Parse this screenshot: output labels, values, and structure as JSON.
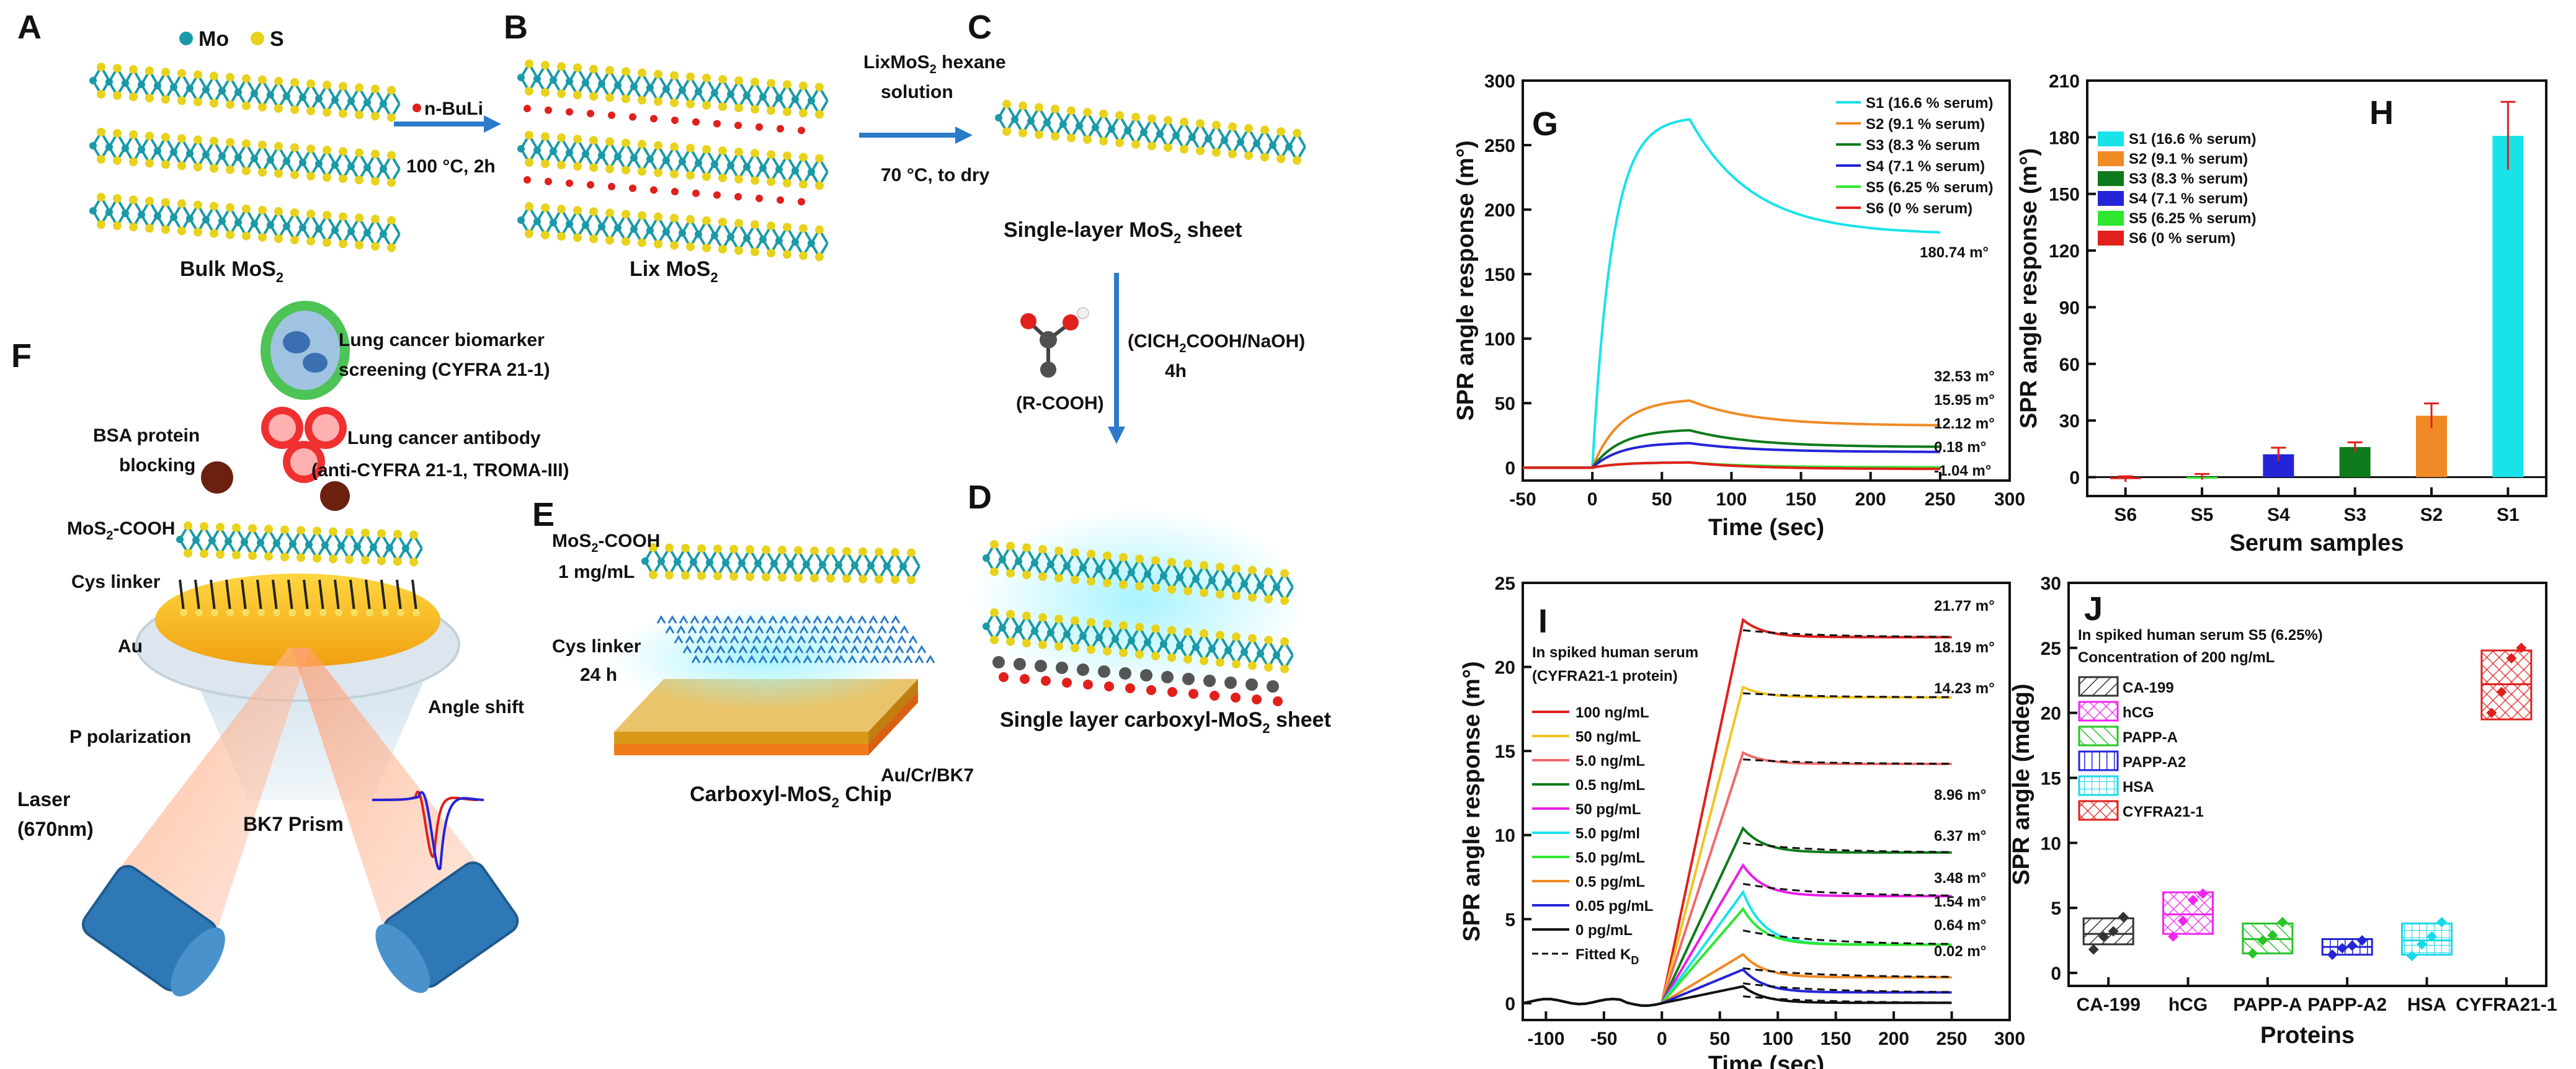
{
  "schematic": {
    "panel_a": "A",
    "panel_b": "B",
    "panel_c": "C",
    "panel_d": "D",
    "panel_e": "E",
    "panel_f": "F",
    "legend_mo": "Mo",
    "legend_s": "S",
    "step1_reagent": "n-BuLi",
    "step1_cond": "100 °C, 2h",
    "bulk": "Bulk MoS",
    "bulk_sub": "2",
    "lix": "Lix MoS",
    "lix_sub": "2",
    "step2_reagent_a": "LixMoS",
    "step2_reagent_sub": "2",
    "step2_reagent_b": " hexane",
    "step2_reagent_c": "solution",
    "step2_cond": "70 °C, to dry",
    "single_a": "Single-layer MoS",
    "single_sub": "2",
    "single_b": " sheet",
    "step3_reagent_a": "(ClCH",
    "step3_sub": "2",
    "step3_reagent_b": "COOH/NaOH)",
    "step3_time": "4h",
    "rcooh": "(R-COOH)",
    "carboxyl_sheet": "Single layer carboxyl-MoS",
    "carboxyl_sheet_sub": "2",
    "carboxyl_sheet_b": " sheet",
    "e_mos2_a": "MoS",
    "e_mos2_sub": "2",
    "e_mos2_b": "-COOH",
    "e_conc": "1 mg/mL",
    "e_cys": "Cys linker",
    "e_time": "24 h",
    "e_sub_layer": "Au/Cr/BK7",
    "e_chip": "Carboxyl-MoS",
    "e_chip_sub": "2",
    "e_chip_b": " Chip",
    "f_biomarker1": "Lung cancer biomarker",
    "f_biomarker2": "screening (CYFRA 21-1)",
    "f_antibody1": "Lung cancer antibody",
    "f_antibody2": "(anti-CYFRA 21-1, TROMA-III)",
    "f_bsa1": "BSA protein",
    "f_bsa2": "blocking",
    "f_mos2_a": "MoS",
    "f_mos2_sub": "2",
    "f_mos2_b": "-COOH",
    "f_cys": "Cys linker",
    "f_au": "Au",
    "f_ppol": "P polarization",
    "f_angle": "Angle shift",
    "f_laser1": "Laser",
    "f_laser2": "(670nm)",
    "f_prism": "BK7 Prism"
  },
  "chart_data": [
    {
      "panel": "G",
      "type": "line",
      "xlabel": "Time (sec)",
      "ylabel": "SPR angle response (m°)",
      "xlim": [
        -50,
        300
      ],
      "ylim": [
        -10,
        300
      ],
      "xticks": [
        -50,
        0,
        50,
        100,
        150,
        200,
        250,
        300
      ],
      "yticks": [
        0,
        50,
        100,
        150,
        200,
        250,
        300
      ],
      "series": [
        {
          "name": "S1 (16.6 % serum)",
          "color": "#19e3e8",
          "peak": 270,
          "end": 180.74,
          "label": "180.74 m°"
        },
        {
          "name": "S2 (9.1 % serum)",
          "color": "#f08a24",
          "peak": 52,
          "end": 32.53,
          "label": "32.53 m°"
        },
        {
          "name": "S3 (8.3 % serum",
          "color": "#0d7a1b",
          "peak": 29,
          "end": 15.95,
          "label": "15.95 m°"
        },
        {
          "name": "S4 (7.1 % serum)",
          "color": "#2424d8",
          "peak": 19,
          "end": 12.12,
          "label": "12.12 m°"
        },
        {
          "name": "S5 (6.25 % serum)",
          "color": "#2ee82e",
          "peak": 4,
          "end": 0.18,
          "label": "0.18 m°"
        },
        {
          "name": "S6 (0 % serum)",
          "color": "#e0201c",
          "peak": 4,
          "end": -1.04,
          "label": "-1.04 m°"
        }
      ]
    },
    {
      "panel": "H",
      "type": "bar",
      "xlabel": "Serum samples",
      "ylabel": "SPR angle response (m°)",
      "ylim": [
        -10,
        210
      ],
      "yticks": [
        0,
        30,
        60,
        90,
        120,
        150,
        180,
        210
      ],
      "categories": [
        "S6",
        "S5",
        "S4",
        "S3",
        "S2",
        "S1"
      ],
      "values": [
        -1.04,
        0.18,
        12.12,
        15.95,
        32.53,
        180.74
      ],
      "errors": [
        1.5,
        1.5,
        3.5,
        2.5,
        6.5,
        18
      ],
      "colors": [
        "#e0201c",
        "#2ee82e",
        "#2424d8",
        "#0d7a1b",
        "#f08a24",
        "#19e3e8"
      ],
      "legend": [
        "S1 (16.6 % serum)",
        "S2 (9.1 % serum)",
        "S3 (8.3 % serum)",
        "S4 (7.1 % serum)",
        "S5 (6.25 % serum)",
        "S6 (0 % serum)"
      ],
      "legend_colors": [
        "#19e3e8",
        "#f08a24",
        "#0d7a1b",
        "#2424d8",
        "#2ee82e",
        "#e0201c"
      ]
    },
    {
      "panel": "I",
      "type": "line",
      "xlabel": "Time (sec)",
      "ylabel": "SPR angle response (m°)",
      "xlim": [
        -120,
        300
      ],
      "ylim": [
        -1,
        25
      ],
      "xticks": [
        -100,
        -50,
        0,
        50,
        100,
        150,
        200,
        250,
        300
      ],
      "yticks": [
        0,
        5,
        10,
        15,
        20,
        25
      ],
      "note1": "In spiked human serum",
      "note2": "(CYFRA21-1 protein)",
      "fitted_label": "Fitted K",
      "fitted_sub": "D",
      "series": [
        {
          "name": "100 ng/mL",
          "color": "#e0201c",
          "peak": 22.8,
          "end": 21.77,
          "label": "21.77 m°"
        },
        {
          "name": "50 ng/mL",
          "color": "#f2c420",
          "peak": 18.8,
          "end": 18.19,
          "label": "18.19 m°"
        },
        {
          "name": "5.0 ng/mL",
          "color": "#f06a6a",
          "peak": 14.9,
          "end": 14.23,
          "label": "14.23 m°"
        },
        {
          "name": "0.5 ng/mL",
          "color": "#0d7a1b",
          "peak": 10.4,
          "end": 8.96,
          "label": "8.96 m°"
        },
        {
          "name": "50 pg/mL",
          "color": "#e81ee8",
          "peak": 8.2,
          "end": 6.37,
          "label": "6.37 m°"
        },
        {
          "name": "5.0 pg/ml",
          "color": "#19e3e8",
          "peak": 6.6,
          "end": 3.48,
          "label": ""
        },
        {
          "name": "5.0 pg/mL",
          "color": "#2ee82e",
          "peak": 5.6,
          "end": 3.48,
          "label": "3.48 m°"
        },
        {
          "name": "0.5 pg/mL",
          "color": "#f08a24",
          "peak": 2.9,
          "end": 1.54,
          "label": "1.54 m°"
        },
        {
          "name": "0.05 pg/mL",
          "color": "#2424d8",
          "peak": 2.0,
          "end": 0.64,
          "label": "0.64 m°"
        },
        {
          "name": "0 pg/mL",
          "color": "#111111",
          "peak": 1.0,
          "end": 0.02,
          "label": "0.02 m°"
        }
      ]
    },
    {
      "panel": "J",
      "type": "scatter",
      "xlabel": "Proteins",
      "ylabel": "SPR angle (mdeg)",
      "ylim": [
        -1,
        30
      ],
      "yticks": [
        0,
        5,
        10,
        15,
        20,
        25,
        30
      ],
      "note1": "In spiked human serum S5 (6.25%)",
      "note2": "Concentration of 200 ng/mL",
      "categories": [
        "CA-199",
        "hCG",
        "PAPP-A",
        "PAPP-A2",
        "HSA",
        "CYFRA21-1"
      ],
      "box_low": [
        2.2,
        3.0,
        1.5,
        1.4,
        1.4,
        19.5
      ],
      "box_high": [
        4.2,
        6.2,
        3.8,
        2.6,
        3.8,
        24.8
      ],
      "means": [
        3.0,
        4.5,
        2.6,
        2.0,
        2.5,
        22.2
      ],
      "points": [
        [
          1.8,
          2.8,
          3.2,
          4.3
        ],
        [
          2.8,
          4.0,
          5.6,
          6.1
        ],
        [
          1.5,
          2.5,
          2.9,
          3.9
        ],
        [
          1.4,
          1.9,
          2.1,
          2.5
        ],
        [
          1.3,
          2.2,
          2.8,
          3.9
        ],
        [
          20.0,
          21.6,
          24.2,
          25.0
        ]
      ],
      "colors": [
        "#333333",
        "#f026f0",
        "#27c427",
        "#2424d8",
        "#19d8e8",
        "#e0201c"
      ]
    }
  ]
}
